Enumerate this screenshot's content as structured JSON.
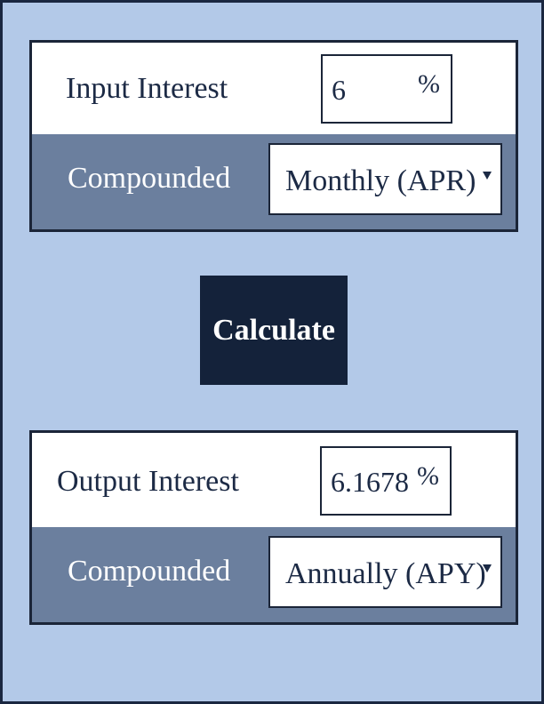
{
  "input": {
    "label": "Input Interest",
    "value": "6",
    "unit": "%",
    "compounded_label": "Compounded",
    "compounded_selected": "Monthly (APR)"
  },
  "calculate_label": "Calculate",
  "output": {
    "label": "Output Interest",
    "value": "6.1678",
    "unit": "%",
    "compounded_label": "Compounded",
    "compounded_selected": "Annually (APY)"
  },
  "icons": {
    "dropdown": "chevron-down-icon"
  },
  "colors": {
    "background": "#b3c9e8",
    "border": "#1b2538",
    "compounded_row": "#6b7f9e",
    "button": "#14223a",
    "text": "#1c2a45"
  }
}
